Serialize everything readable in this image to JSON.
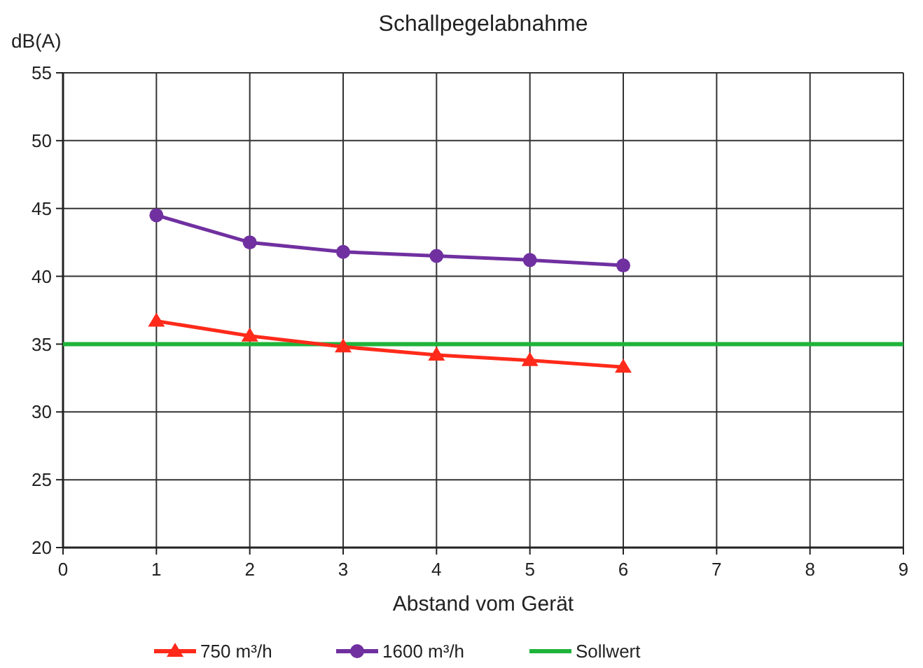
{
  "chart_data": {
    "type": "line",
    "title": "Schallpegelabnahme",
    "xlabel": "Abstand vom Gerät",
    "ylabel": "dB(A)",
    "x": [
      1,
      2,
      3,
      4,
      5,
      6
    ],
    "series": [
      {
        "name": "750 m³/h",
        "color": "#ff2a1a",
        "values": [
          36.7,
          35.6,
          34.8,
          34.2,
          33.8,
          33.3
        ],
        "marker": "triangle"
      },
      {
        "name": "1600 m³/h",
        "color": "#7030a0",
        "values": [
          44.5,
          42.5,
          41.8,
          41.5,
          41.2,
          40.8
        ],
        "marker": "circle"
      }
    ],
    "ref_lines": [
      {
        "axis": "y",
        "value": 35,
        "label": "Sollwert",
        "color": "#1fb33a"
      }
    ],
    "xlim": [
      0,
      9
    ],
    "xticks": [
      0,
      1,
      2,
      3,
      4,
      5,
      6,
      7,
      8,
      9
    ],
    "ylim": [
      20,
      55
    ],
    "yticks": [
      20,
      25,
      30,
      35,
      40,
      45,
      50,
      55
    ],
    "grid": true,
    "legend": "bottom"
  }
}
